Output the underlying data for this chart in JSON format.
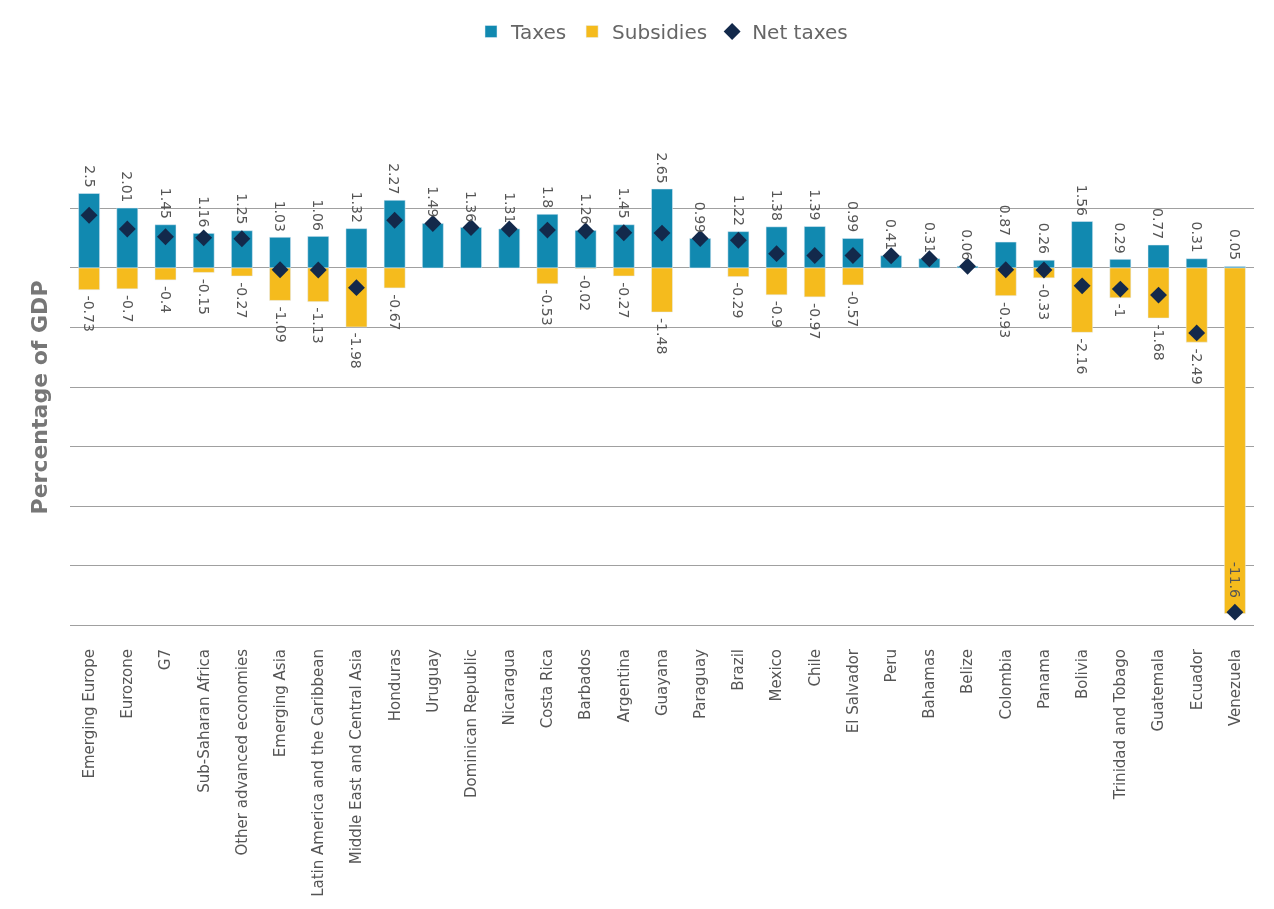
{
  "chart_data": {
    "type": "bar",
    "stacked": true,
    "ylabel": "Percentage of GDP",
    "categories": [
      "Emerging Europe",
      "Eurozone",
      "G7",
      "Sub-Saharan Africa",
      "Other advanced economies",
      "Emerging Asia",
      "Latin America and the Caribbean",
      "Middle East and Central Asia",
      "Honduras",
      "Uruguay",
      "Dominican Republic",
      "Nicaragua",
      "Costa Rica",
      "Barbados",
      "Argentina",
      "Guayana",
      "Paraguay",
      "Brazil",
      "Mexico",
      "Chile",
      "El Salvador",
      "Peru",
      "Bahamas",
      "Belize",
      "Colombia",
      "Panama",
      "Bolivia",
      "Trinidad and Tobago",
      "Guatemala",
      "Ecuador",
      "Venezuela"
    ],
    "series": [
      {
        "name": "Taxes",
        "color": "#1189b0",
        "values": [
          2.5,
          2.01,
          1.45,
          1.16,
          1.25,
          1.03,
          1.06,
          1.32,
          2.27,
          1.49,
          1.36,
          1.31,
          1.8,
          1.26,
          1.45,
          2.65,
          0.99,
          1.22,
          1.38,
          1.39,
          0.99,
          0.41,
          0.31,
          0.06,
          0.87,
          0.26,
          1.56,
          0.29,
          0.77,
          0.31,
          0.05
        ],
        "value_labels": [
          "2.5",
          "2.01",
          "1.45",
          "1.16",
          "1.25",
          "1.03",
          "1.06",
          "1.32",
          "2.27",
          "1.49",
          "1.36",
          "1.31",
          "1.8",
          "1.26",
          "1.45",
          "2.65",
          "0.99",
          "1.22",
          "1.38",
          "1.39",
          "0.99",
          "0.41",
          "0.31",
          "0.06",
          "0.87",
          "0.26",
          "1.56",
          "0.29",
          "0.77",
          "0.31",
          "0.05"
        ]
      },
      {
        "name": "Subsidies",
        "color": "#f5bb1d",
        "values": [
          -0.73,
          -0.7,
          -0.4,
          -0.15,
          -0.27,
          -1.09,
          -1.13,
          -1.98,
          -0.67,
          null,
          null,
          null,
          -0.53,
          -0.02,
          -0.27,
          -1.48,
          null,
          -0.29,
          -0.9,
          -0.97,
          -0.57,
          null,
          null,
          null,
          -0.93,
          -0.33,
          -2.16,
          -1,
          -1.68,
          -2.49,
          -11.6
        ],
        "value_labels": [
          "-0.73",
          "-0.7",
          "-0.4",
          "-0.15",
          "-0.27",
          "-1.09",
          "-1.13",
          "-1.98",
          "-0.67",
          null,
          null,
          null,
          "-0.53",
          "-0.02",
          "-0.27",
          "-1.48",
          null,
          "-0.29",
          "-0.9",
          "-0.97",
          "-0.57",
          null,
          null,
          null,
          "-0.93",
          "-0.33",
          "-2.16",
          "-1",
          "-1.68",
          "-2.49",
          "-11.6"
        ]
      },
      {
        "name": "Net taxes",
        "type": "scatter",
        "color": "#13294b",
        "marker": "diamond",
        "values": [
          1.77,
          1.31,
          1.05,
          1.01,
          0.98,
          -0.06,
          -0.07,
          -0.66,
          1.6,
          1.49,
          1.36,
          1.31,
          1.27,
          1.24,
          1.18,
          1.17,
          0.99,
          0.93,
          0.48,
          0.42,
          0.42,
          0.41,
          0.31,
          0.06,
          -0.06,
          -0.07,
          -0.6,
          -0.71,
          -0.91,
          -2.18,
          -11.55
        ]
      }
    ],
    "grid": "y",
    "legend": "top",
    "tick_labels": "x"
  }
}
